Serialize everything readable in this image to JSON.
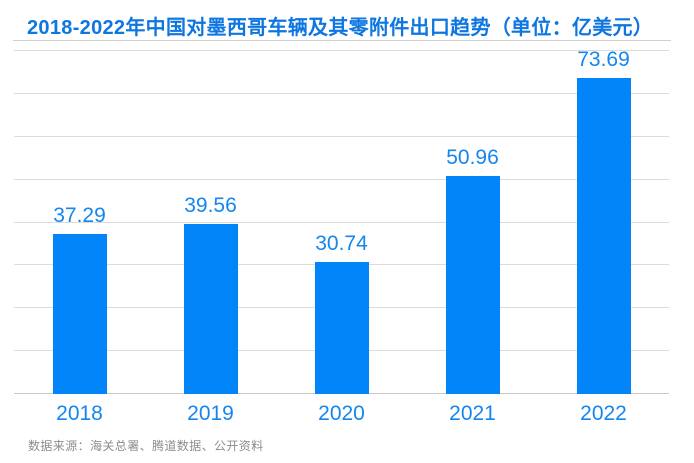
{
  "page": {
    "title": "2018-2022年中国对墨西哥车辆及其零附件出口趋势（单位：亿美元）",
    "source_note": "数据来源：海关总署、腾道数据、公开资料"
  },
  "chart_data": {
    "type": "bar",
    "title": "2018-2022年中国对墨西哥车辆及其零附件出口趋势（单位：亿美元）",
    "categories": [
      "2018",
      "2019",
      "2020",
      "2021",
      "2022"
    ],
    "values": [
      37.29,
      39.56,
      30.74,
      50.96,
      73.69
    ],
    "value_labels": [
      "37.29",
      "39.56",
      "30.74",
      "50.96",
      "73.69"
    ],
    "xlabel": "",
    "ylabel": "",
    "ylim": [
      0,
      80
    ],
    "grid_step": 10,
    "grid": true,
    "legend": false,
    "data_labels": true,
    "source": "数据来源：海关总署、腾道数据、公开资料",
    "colors": {
      "bar": "#0185f8",
      "title": "#0d76e0",
      "label": "#1486ed",
      "grid": "#dcdcdc",
      "axis_line": "#c9c9c9",
      "source": "#8c8c8c",
      "background": "#ffffff"
    }
  }
}
